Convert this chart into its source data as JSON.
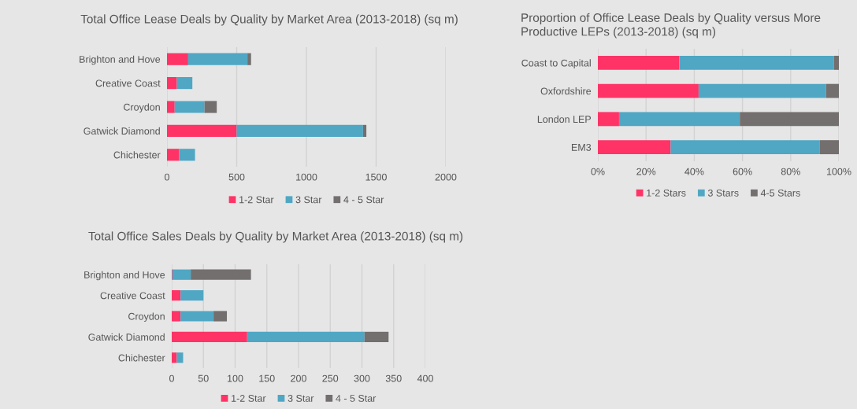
{
  "chart_data": [
    {
      "type": "bar",
      "orientation": "horizontal",
      "stacked": true,
      "title": "Total Office Lease Deals by Quality by Market Area (2013-2018) (sq m)",
      "categories": [
        "Brighton and Hove",
        "Creative Coast",
        "Croydon",
        "Gatwick Diamond",
        "Chichester"
      ],
      "series": [
        {
          "name": "1-2 Star",
          "color": "#ff3366",
          "values": [
            152,
            71,
            55,
            500,
            88
          ]
        },
        {
          "name": "3 Star",
          "color": "#4fa7c4",
          "values": [
            425,
            111,
            214,
            906,
            113
          ]
        },
        {
          "name": "4 - 5 Star",
          "color": "#736f6e",
          "values": [
            26,
            0,
            88,
            24,
            0
          ]
        }
      ],
      "xlim": [
        0,
        2000
      ],
      "xticks": [
        0,
        500,
        1000,
        1500,
        2000
      ],
      "grid": "x",
      "legend": "bottom"
    },
    {
      "type": "bar",
      "orientation": "horizontal",
      "stacked": true,
      "title": "Proportion of Office Lease Deals by Quality versus More\nProductive LEPs (2013-2018) (sq m)",
      "categories": [
        "Coast to Capital",
        "Oxfordshire",
        "London LEP",
        "EM3"
      ],
      "series": [
        {
          "name": "1-2 Stars",
          "color": "#ff3366",
          "values": [
            33.8,
            41.8,
            8.8,
            30.2
          ]
        },
        {
          "name": "3 Stars",
          "color": "#4fa7c4",
          "values": [
            64.1,
            52.9,
            50.1,
            61.9
          ]
        },
        {
          "name": "4-5 Stars",
          "color": "#736f6e",
          "values": [
            2.1,
            5.3,
            41.1,
            7.9
          ]
        }
      ],
      "xlim": [
        0,
        100
      ],
      "xticks": [
        {
          "value": 0,
          "label": "0%"
        },
        {
          "value": 20,
          "label": "20%"
        },
        {
          "value": 40,
          "label": "40%"
        },
        {
          "value": 60,
          "label": "60%"
        },
        {
          "value": 80,
          "label": "80%"
        },
        {
          "value": 100,
          "label": "100%"
        }
      ],
      "grid": "x",
      "legend": "bottom"
    },
    {
      "type": "bar",
      "orientation": "horizontal",
      "stacked": true,
      "title": "Total Office Sales Deals by Quality by Market Area (2013-2018) (sq m)",
      "categories": [
        "Brighton and Hove",
        "Creative Coast",
        "Croydon",
        "Gatwick Diamond",
        "Chichester"
      ],
      "series": [
        {
          "name": "1-2 Star",
          "color": "#ff3366",
          "values": [
            1,
            14,
            14,
            119,
            8
          ]
        },
        {
          "name": "3 Star",
          "color": "#4fa7c4",
          "values": [
            29,
            36,
            52,
            185,
            10
          ]
        },
        {
          "name": "4 - 5 Star",
          "color": "#736f6e",
          "values": [
            95,
            0,
            21,
            38,
            0
          ]
        }
      ],
      "xlim": [
        0,
        400
      ],
      "xticks": [
        0,
        50,
        100,
        150,
        200,
        250,
        300,
        350,
        400
      ],
      "grid": "x",
      "legend": "bottom"
    }
  ]
}
